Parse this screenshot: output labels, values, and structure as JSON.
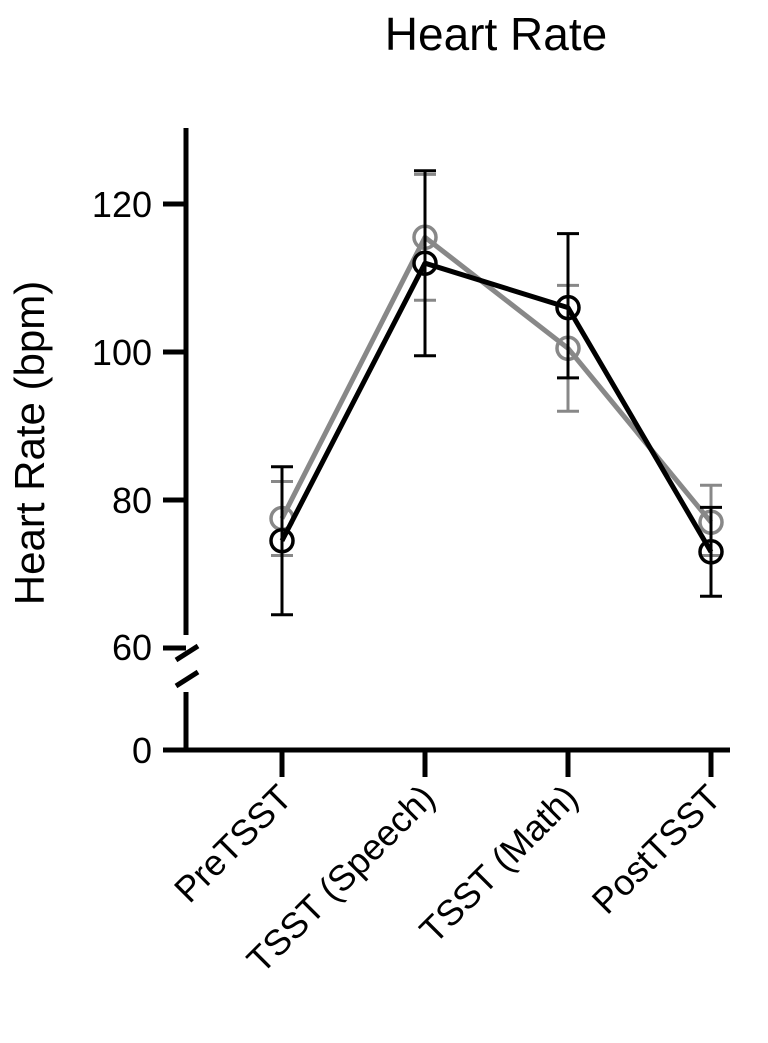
{
  "chart_data": {
    "type": "line",
    "title": "Heart Rate",
    "ylabel": "Heart Rate (bpm)",
    "xlabel": "",
    "categories": [
      "PreTSST",
      "TSST (Speech)",
      "TSST (Math)",
      "PostTSST"
    ],
    "y_axis": {
      "broken": true,
      "lower_segment": [
        0,
        60
      ],
      "upper_segment": [
        60,
        130
      ],
      "ticks": [
        0,
        60,
        80,
        100,
        120
      ]
    },
    "grid": false,
    "legend": "none",
    "series": [
      {
        "color": "#888888",
        "values": [
          77.5,
          115.5,
          100.5,
          77
        ],
        "error_low": [
          72.5,
          107,
          92,
          72.5
        ],
        "error_high": [
          82.5,
          124,
          109,
          82
        ]
      },
      {
        "color": "#000000",
        "values": [
          74.5,
          112,
          106,
          73
        ],
        "error_low": [
          64.5,
          99.5,
          96.5,
          67
        ],
        "error_high": [
          84.5,
          124.5,
          116,
          79
        ]
      }
    ]
  }
}
